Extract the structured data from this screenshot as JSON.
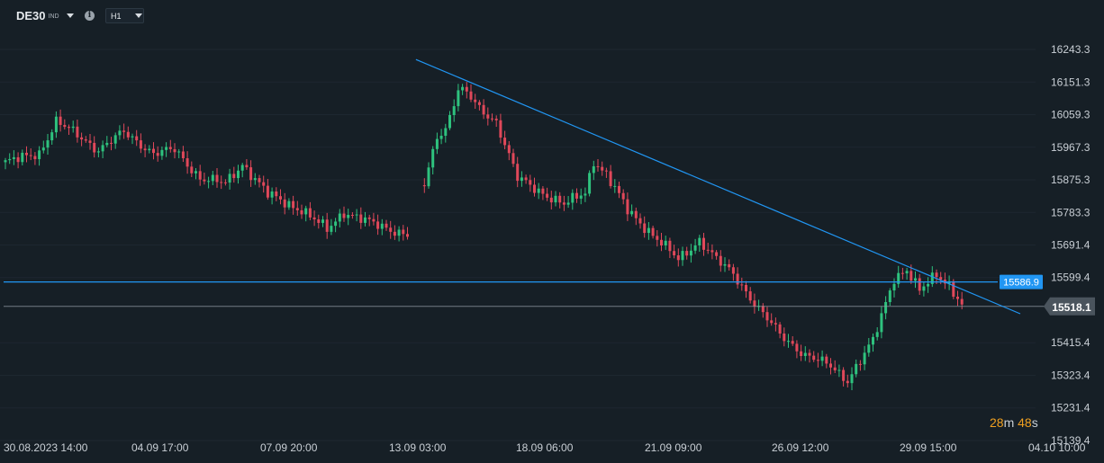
{
  "toolbar": {
    "symbol": "DE30",
    "symbol_tag": "IND",
    "info_icon": "info-icon",
    "timeframe": "H1"
  },
  "countdown": {
    "minutes": "28",
    "m_unit": "m",
    "seconds": "48",
    "s_unit": "s"
  },
  "colors": {
    "background": "#161f26",
    "bull": "#2ec27e",
    "bear": "#e0485a",
    "trendline": "#2196f3",
    "current_price_line": "#9aa3ab",
    "countdown": "#f0a020"
  },
  "chart_data": {
    "type": "candlestick",
    "title": "",
    "timeframe": "H1",
    "x_ticks": [
      "30.08.2023 14:00",
      "04.09 17:00",
      "07.09 20:00",
      "13.09 03:00",
      "18.09 06:00",
      "21.09 09:00",
      "26.09 12:00",
      "29.09 15:00",
      "04.10 10:00"
    ],
    "y_ticks": [
      16243.3,
      16151.3,
      16059.3,
      15967.3,
      15875.3,
      15783.3,
      15691.4,
      15599.4,
      15415.4,
      15323.4,
      15231.4,
      15139.4
    ],
    "ylim": [
      15139.4,
      16243.3
    ],
    "horizontal_line": {
      "label": "15586.9",
      "value": 15586.9
    },
    "current_price": {
      "label": "15518.1",
      "value": 15518.1
    },
    "trendline": {
      "from": {
        "bar_index": 97,
        "value": 16215
      },
      "to": {
        "bar_index": 226,
        "value": 15510
      }
    },
    "path": [
      [
        0,
        15925
      ],
      [
        8,
        15950
      ],
      [
        12,
        16040
      ],
      [
        16,
        16010
      ],
      [
        22,
        15960
      ],
      [
        28,
        16010
      ],
      [
        35,
        15950
      ],
      [
        40,
        15960
      ],
      [
        46,
        15880
      ],
      [
        52,
        15865
      ],
      [
        56,
        15920
      ],
      [
        62,
        15835
      ],
      [
        70,
        15790
      ],
      [
        76,
        15735
      ],
      [
        80,
        15785
      ],
      [
        86,
        15755
      ],
      [
        95,
        15720
      ],
      [
        99,
        15860
      ],
      [
        102,
        16000
      ],
      [
        104,
        16020
      ],
      [
        107,
        16130
      ],
      [
        109,
        16120
      ],
      [
        112,
        16075
      ],
      [
        116,
        16040
      ],
      [
        121,
        15880
      ],
      [
        126,
        15845
      ],
      [
        132,
        15805
      ],
      [
        137,
        15840
      ],
      [
        139,
        15930
      ],
      [
        142,
        15890
      ],
      [
        147,
        15790
      ],
      [
        153,
        15720
      ],
      [
        159,
        15650
      ],
      [
        164,
        15705
      ],
      [
        168,
        15650
      ],
      [
        172,
        15610
      ],
      [
        178,
        15510
      ],
      [
        183,
        15440
      ],
      [
        189,
        15380
      ],
      [
        195,
        15350
      ],
      [
        199,
        15310
      ],
      [
        205,
        15420
      ],
      [
        210,
        15600
      ],
      [
        213,
        15620
      ],
      [
        216,
        15560
      ],
      [
        220,
        15610
      ],
      [
        223,
        15580
      ],
      [
        226,
        15520
      ]
    ]
  }
}
